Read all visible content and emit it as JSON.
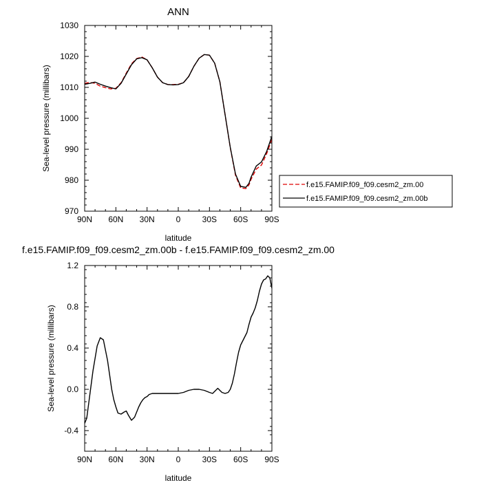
{
  "chart_data": [
    {
      "type": "line",
      "title": "ANN",
      "xlabel": "latitude",
      "ylabel": "Sea-level pressure (millibars)",
      "xlim": [
        -90,
        90
      ],
      "ylim": [
        970,
        1030
      ],
      "x_ticks": [
        -90,
        -60,
        -30,
        0,
        30,
        60,
        90
      ],
      "x_tick_labels": [
        "90N",
        "60N",
        "30N",
        "0",
        "30S",
        "60S",
        "90S"
      ],
      "y_ticks": [
        970,
        980,
        990,
        1000,
        1010,
        1020,
        1030
      ],
      "y_tick_labels": [
        "970",
        "980",
        "990",
        "1000",
        "1010",
        "1020",
        "1030"
      ],
      "grid": false,
      "legend_position": "outside right",
      "series": [
        {
          "name": "f.e15.FAMIP.f09_f09.cesm2_zm.00",
          "color": "#dd0000",
          "dash": "dashed",
          "x": [
            -90,
            -85,
            -80,
            -75,
            -70,
            -65,
            -60,
            -55,
            -50,
            -45,
            -40,
            -35,
            -30,
            -25,
            -20,
            -15,
            -10,
            -5,
            0,
            5,
            10,
            15,
            20,
            25,
            30,
            35,
            40,
            45,
            50,
            55,
            60,
            65,
            68,
            70,
            75,
            80,
            85,
            90
          ],
          "values": [
            1011.3,
            1011.6,
            1011.3,
            1010.4,
            1009.9,
            1009.5,
            1009.7,
            1011.5,
            1014.6,
            1017.6,
            1019.3,
            1019.8,
            1018.9,
            1016.3,
            1013.3,
            1011.5,
            1010.9,
            1010.9,
            1011.0,
            1011.5,
            1013.5,
            1016.8,
            1019.4,
            1020.6,
            1020.4,
            1017.8,
            1011.8,
            1001.2,
            990.5,
            981.6,
            977.5,
            977.3,
            978.5,
            980.3,
            983.6,
            984.9,
            988.6,
            993.2
          ]
        },
        {
          "name": "f.e15.FAMIP.f09_f09.cesm2_zm.00b",
          "color": "#000000",
          "dash": "solid",
          "x": [
            -90,
            -85,
            -80,
            -75,
            -70,
            -65,
            -60,
            -55,
            -50,
            -45,
            -40,
            -35,
            -30,
            -25,
            -20,
            -15,
            -10,
            -5,
            0,
            5,
            10,
            15,
            20,
            25,
            30,
            35,
            40,
            45,
            50,
            55,
            60,
            65,
            68,
            70,
            75,
            80,
            85,
            90
          ],
          "values": [
            1011.0,
            1011.3,
            1011.7,
            1011.0,
            1010.4,
            1009.9,
            1009.5,
            1011.3,
            1014.3,
            1017.3,
            1019.2,
            1019.6,
            1018.9,
            1016.3,
            1013.3,
            1011.5,
            1010.9,
            1010.8,
            1010.9,
            1011.5,
            1013.5,
            1016.8,
            1019.4,
            1020.6,
            1020.4,
            1017.8,
            1011.8,
            1001.2,
            990.6,
            982.0,
            978.0,
            977.7,
            979.0,
            981.0,
            984.6,
            985.9,
            989.3,
            994.2
          ]
        }
      ]
    },
    {
      "type": "line",
      "title": "f.e15.FAMIP.f09_f09.cesm2_zm.00b - f.e15.FAMIP.f09_f09.cesm2_zm.00",
      "xlabel": "latitude",
      "ylabel": "Sea-level pressure (millibars)",
      "xlim": [
        -90,
        90
      ],
      "ylim": [
        -0.6,
        1.2
      ],
      "x_ticks": [
        -90,
        -60,
        -30,
        0,
        30,
        60,
        90
      ],
      "x_tick_labels": [
        "90N",
        "60N",
        "30N",
        "0",
        "30S",
        "60S",
        "90S"
      ],
      "y_ticks": [
        -0.4,
        0.0,
        0.4,
        0.8,
        1.2
      ],
      "y_tick_labels": [
        "-0.4",
        "0.0",
        "0.4",
        "0.8",
        "1.2"
      ],
      "grid": false,
      "series": [
        {
          "color": "#000000",
          "dash": "solid",
          "x": [
            -90,
            -88,
            -85,
            -82,
            -80,
            -78,
            -75,
            -72,
            -70,
            -68,
            -66,
            -64,
            -62,
            -60,
            -58,
            -55,
            -52,
            -50,
            -48,
            -45,
            -42,
            -40,
            -38,
            -36,
            -34,
            -32,
            -30,
            -28,
            -25,
            -22,
            -20,
            -17,
            -14,
            -10,
            -5,
            0,
            5,
            10,
            15,
            20,
            25,
            30,
            33,
            36,
            38,
            40,
            42,
            45,
            48,
            50,
            52,
            54,
            56,
            58,
            60,
            63,
            66,
            68,
            70,
            72,
            74,
            76,
            78,
            80,
            82,
            84,
            86,
            88,
            90
          ],
          "values": [
            -0.33,
            -0.28,
            -0.05,
            0.18,
            0.3,
            0.42,
            0.5,
            0.48,
            0.38,
            0.28,
            0.14,
            0.0,
            -0.1,
            -0.17,
            -0.23,
            -0.24,
            -0.22,
            -0.21,
            -0.25,
            -0.3,
            -0.27,
            -0.22,
            -0.17,
            -0.13,
            -0.1,
            -0.08,
            -0.07,
            -0.05,
            -0.04,
            -0.04,
            -0.04,
            -0.04,
            -0.04,
            -0.04,
            -0.04,
            -0.04,
            -0.03,
            -0.01,
            0.0,
            0.0,
            -0.01,
            -0.03,
            -0.04,
            -0.01,
            0.01,
            -0.01,
            -0.03,
            -0.04,
            -0.03,
            0.0,
            0.06,
            0.15,
            0.26,
            0.36,
            0.43,
            0.49,
            0.55,
            0.63,
            0.7,
            0.74,
            0.79,
            0.86,
            0.95,
            1.02,
            1.06,
            1.07,
            1.1,
            1.08,
            0.98
          ]
        }
      ]
    }
  ]
}
